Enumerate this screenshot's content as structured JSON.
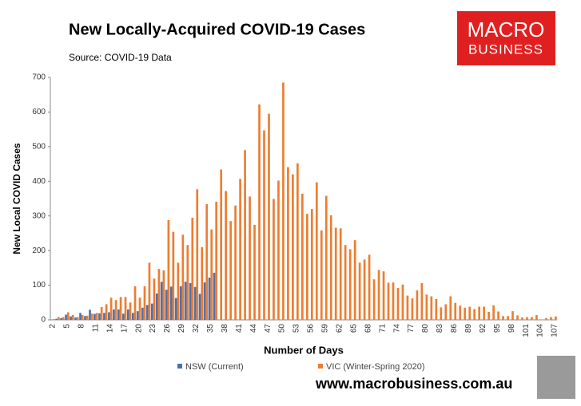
{
  "chart_data": {
    "type": "bar",
    "title": "New Locally-Acquired COVID-19 Cases",
    "subtitle": "Source: COVID-19 Data",
    "logo_text": [
      "MACRO",
      "BUSINESS"
    ],
    "footer": "www.macrobusiness.com.au",
    "x_label": "Number of Days",
    "y_label": "New Local COVID Cases",
    "categories": [
      "2",
      null,
      null,
      "5",
      null,
      null,
      "8",
      null,
      null,
      "11",
      null,
      null,
      "14",
      null,
      null,
      "17",
      null,
      null,
      "20",
      null,
      null,
      "23",
      null,
      null,
      "26",
      null,
      null,
      "29",
      null,
      null,
      "32",
      null,
      null,
      "35",
      null,
      null,
      "38",
      null,
      null,
      "41",
      null,
      null,
      "44",
      null,
      null,
      "47",
      null,
      null,
      "50",
      null,
      null,
      "53",
      null,
      null,
      "56",
      null,
      null,
      "59",
      null,
      null,
      "62",
      null,
      null,
      "65",
      null,
      null,
      "68",
      null,
      null,
      "71",
      null,
      null,
      "74",
      null,
      null,
      "77",
      null,
      null,
      "80",
      null,
      null,
      "83",
      null,
      null,
      "86",
      null,
      null,
      "89",
      null,
      null,
      "92",
      null,
      null,
      "95",
      null,
      null,
      "98",
      null,
      null,
      "101",
      null,
      null,
      "104",
      null,
      null,
      "107"
    ],
    "series": [
      {
        "name": "NSW (Current)",
        "color": "#4a72b0",
        "values": [
          0,
          3,
          5,
          15,
          10,
          7,
          20,
          11,
          29,
          17,
          19,
          20,
          22,
          30,
          30,
          18,
          30,
          20,
          25,
          35,
          43,
          47,
          76,
          110,
          87,
          96,
          63,
          97,
          110,
          106,
          95,
          75,
          108,
          122,
          136,
          null,
          null,
          null,
          null,
          null,
          null,
          null,
          null,
          null,
          null,
          null,
          null,
          null,
          null,
          null,
          null,
          null,
          null,
          null,
          null,
          null,
          null,
          null,
          null,
          null,
          null,
          null,
          null,
          null,
          null,
          null,
          null,
          null,
          null,
          null,
          null,
          null,
          null,
          null,
          null,
          null,
          null,
          null,
          null,
          null,
          null,
          null,
          null,
          null,
          null,
          null,
          null,
          null,
          null,
          null,
          null,
          null,
          null,
          null,
          null,
          null,
          null,
          null,
          null,
          null,
          null,
          null,
          null,
          null,
          null,
          null
        ]
      },
      {
        "name": "VIC (Winter-Spring 2020)",
        "color": "#ed7d31",
        "values": [
          2,
          8,
          8,
          22,
          14,
          8,
          14,
          12,
          18,
          20,
          37,
          45,
          64,
          57,
          66,
          66,
          50,
          97,
          64,
          97,
          165,
          119,
          147,
          143,
          288,
          254,
          165,
          246,
          216,
          295,
          377,
          210,
          334,
          261,
          341,
          434,
          372,
          285,
          330,
          407,
          490,
          356,
          274,
          622,
          547,
          595,
          349,
          402,
          685,
          441,
          420,
          452,
          364,
          306,
          320,
          397,
          258,
          358,
          302,
          266,
          264,
          216,
          204,
          230,
          165,
          174,
          188,
          117,
          144,
          140,
          107,
          108,
          92,
          102,
          70,
          62,
          85,
          106,
          73,
          68,
          60,
          36,
          45,
          68,
          49,
          41,
          35,
          38,
          31,
          38,
          38,
          23,
          42,
          24,
          11,
          11,
          25,
          13,
          7,
          8,
          8,
          14,
          1,
          5,
          8,
          10
        ]
      }
    ],
    "ylim": [
      0,
      700
    ],
    "yticks": [
      0,
      100,
      200,
      300,
      400,
      500,
      600,
      700
    ],
    "grid": false,
    "legend": "bottom"
  }
}
